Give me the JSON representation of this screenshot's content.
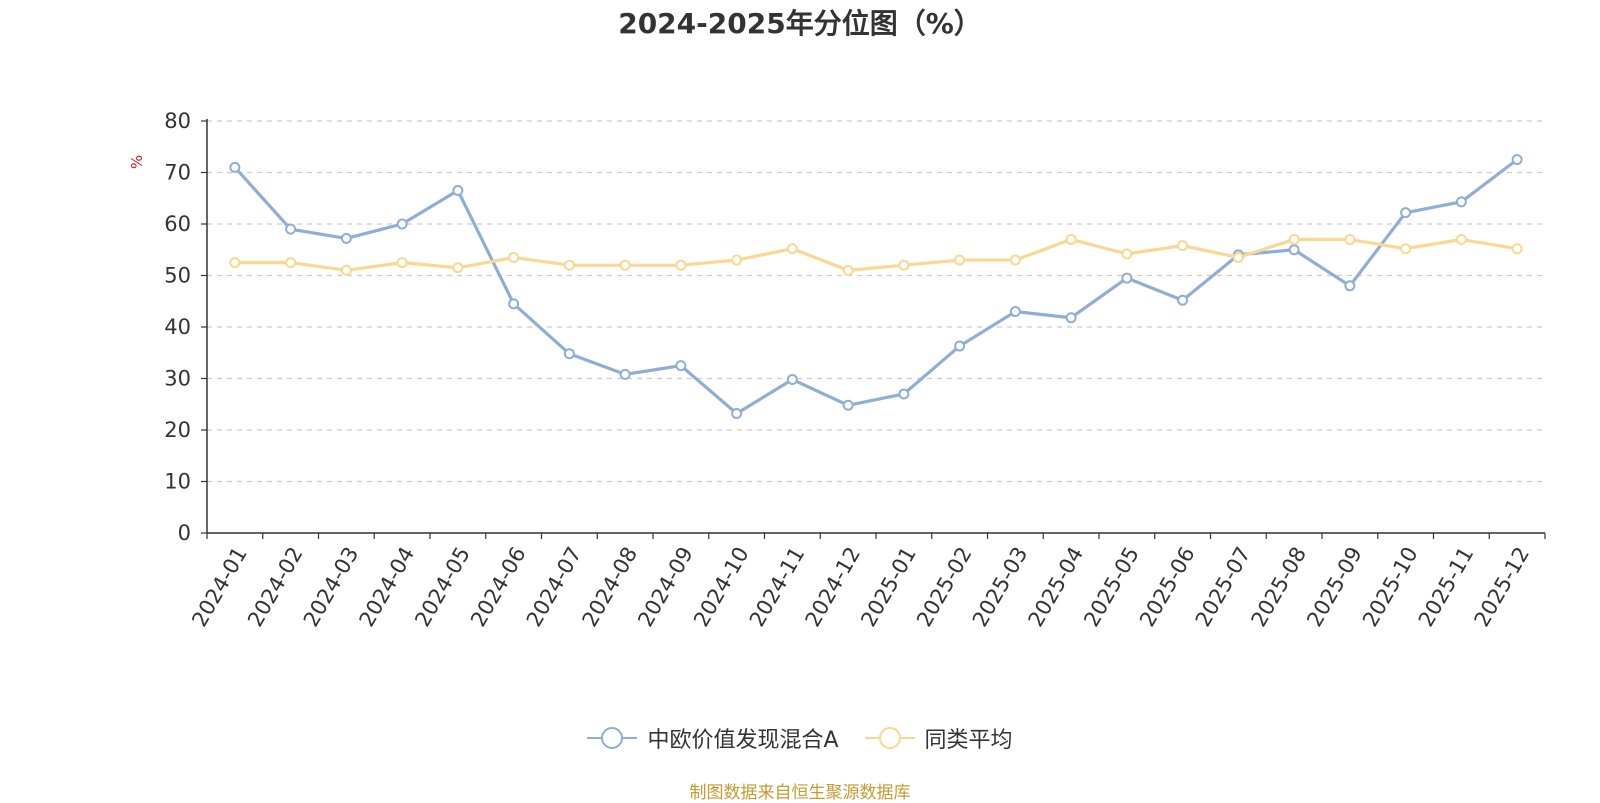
{
  "chart_data": {
    "type": "line",
    "title": "2024-2025年分位图（%）",
    "ylabel": "%",
    "xlabel": "",
    "ylim": [
      0,
      80
    ],
    "yticks": [
      0,
      10,
      20,
      30,
      40,
      50,
      60,
      70,
      80
    ],
    "grid": true,
    "legend_position": "bottom",
    "categories": [
      "2024-01",
      "2024-02",
      "2024-03",
      "2024-04",
      "2024-05",
      "2024-06",
      "2024-07",
      "2024-08",
      "2024-09",
      "2024-10",
      "2024-11",
      "2024-12",
      "2025-01",
      "2025-02",
      "2025-03",
      "2025-04",
      "2025-05",
      "2025-06",
      "2025-07",
      "2025-08",
      "2025-09",
      "2025-10",
      "2025-11",
      "2025-12"
    ],
    "series": [
      {
        "name": "中欧价值发现混合A",
        "color": "#8eaed8",
        "values": [
          71,
          59,
          57.2,
          60,
          66.5,
          44.5,
          34.8,
          30.8,
          32.5,
          23.2,
          29.8,
          24.8,
          27,
          36.3,
          43,
          41.8,
          49.5,
          45.2,
          54,
          55,
          48,
          62.2,
          64.3,
          72.5
        ]
      },
      {
        "name": "同类平均",
        "color": "#fbd78f",
        "values": [
          52.5,
          52.5,
          51,
          52.5,
          51.5,
          53.5,
          52,
          52,
          52,
          53,
          55.2,
          51,
          52,
          53,
          53,
          57,
          54.2,
          55.8,
          53.5,
          57,
          57,
          55.2,
          57,
          55.2
        ]
      }
    ]
  },
  "source": "制图数据来自恒生聚源数据库"
}
